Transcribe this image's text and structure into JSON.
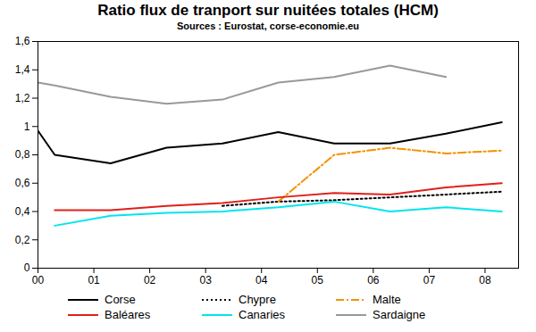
{
  "chart_data": {
    "type": "line",
    "title": "Ratio flux de tranport sur nuitées totales (HCM)",
    "subtitle": "Sources : Eurostat, corse-economie.eu",
    "x": [
      0,
      0.3,
      1.3,
      2.3,
      3.3,
      4.3,
      5.3,
      6.3,
      7.3,
      8.3
    ],
    "series": [
      {
        "name": "Corse",
        "color": "#000000",
        "line_style": "solid",
        "values": [
          0.97,
          0.8,
          0.74,
          0.85,
          0.88,
          0.96,
          0.88,
          0.88,
          0.95,
          1.03
        ]
      },
      {
        "name": "Chypre",
        "color": "#000000",
        "line_style": "dotted",
        "values": [
          null,
          null,
          null,
          null,
          0.44,
          0.47,
          0.48,
          0.5,
          0.52,
          0.54
        ]
      },
      {
        "name": "Malte",
        "color": "#f39200",
        "line_style": "dashdot",
        "values": [
          null,
          null,
          null,
          null,
          null,
          0.47,
          0.8,
          0.85,
          0.81,
          0.83
        ]
      },
      {
        "name": "Baléares",
        "color": "#e0201b",
        "line_style": "solid",
        "values": [
          null,
          0.41,
          0.41,
          0.44,
          0.46,
          0.5,
          0.53,
          0.52,
          0.57,
          0.6
        ]
      },
      {
        "name": "Canaries",
        "color": "#00e5ee",
        "line_style": "solid",
        "values": [
          null,
          0.3,
          0.37,
          0.39,
          0.4,
          0.43,
          0.47,
          0.4,
          0.43,
          0.4
        ]
      },
      {
        "name": "Sardaigne",
        "color": "#999999",
        "line_style": "solid",
        "values": [
          1.31,
          1.29,
          1.21,
          1.16,
          1.19,
          1.31,
          1.35,
          1.43,
          1.35,
          null
        ]
      }
    ],
    "xlim": [
      0,
      8.6
    ],
    "xticks": [
      {
        "value": 0,
        "label": "00"
      },
      {
        "value": 1,
        "label": "01"
      },
      {
        "value": 2,
        "label": "02"
      },
      {
        "value": 3,
        "label": "03"
      },
      {
        "value": 4,
        "label": "04"
      },
      {
        "value": 5,
        "label": "05"
      },
      {
        "value": 6,
        "label": "06"
      },
      {
        "value": 7,
        "label": "07"
      },
      {
        "value": 8,
        "label": "08"
      }
    ],
    "ylim": [
      0,
      1.6
    ],
    "yticks": [
      0,
      {
        "value": 0.2,
        "label": "0,2"
      },
      {
        "value": 0.4,
        "label": "0,4"
      },
      {
        "value": 0.6,
        "label": "0,6"
      },
      {
        "value": 0.8,
        "label": "0,8"
      },
      1,
      {
        "value": 1.2,
        "label": "1,2"
      },
      {
        "value": 1.4,
        "label": "1,4"
      },
      {
        "value": 1.6,
        "label": "1,6"
      }
    ],
    "grid": false,
    "legend": "bottom"
  }
}
